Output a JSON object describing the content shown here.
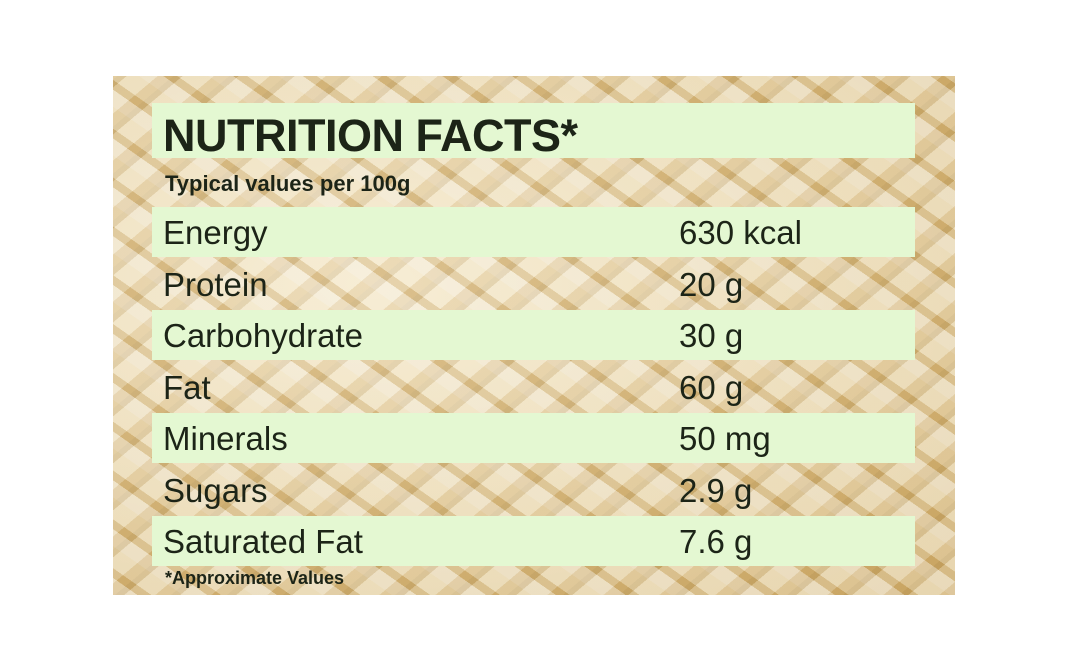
{
  "title": "NUTRITION FACTS*",
  "subtitle": "Typical values per 100g",
  "rows": [
    {
      "label": "Energy",
      "value": "630 kcal",
      "highlight": true
    },
    {
      "label": "Protein",
      "value": "20 g",
      "highlight": false
    },
    {
      "label": "Carbohydrate",
      "value": "30 g",
      "highlight": true
    },
    {
      "label": "Fat",
      "value": "60 g",
      "highlight": false
    },
    {
      "label": "Minerals",
      "value": "50 mg",
      "highlight": true
    },
    {
      "label": "Sugars",
      "value": "2.9 g",
      "highlight": false
    },
    {
      "label": "Saturated Fat",
      "value": "7.6 g",
      "highlight": true
    }
  ],
  "footnote": "*Approximate  Values",
  "colors": {
    "highlight_bar": "#e4f8d2",
    "text": "#1c2417"
  }
}
